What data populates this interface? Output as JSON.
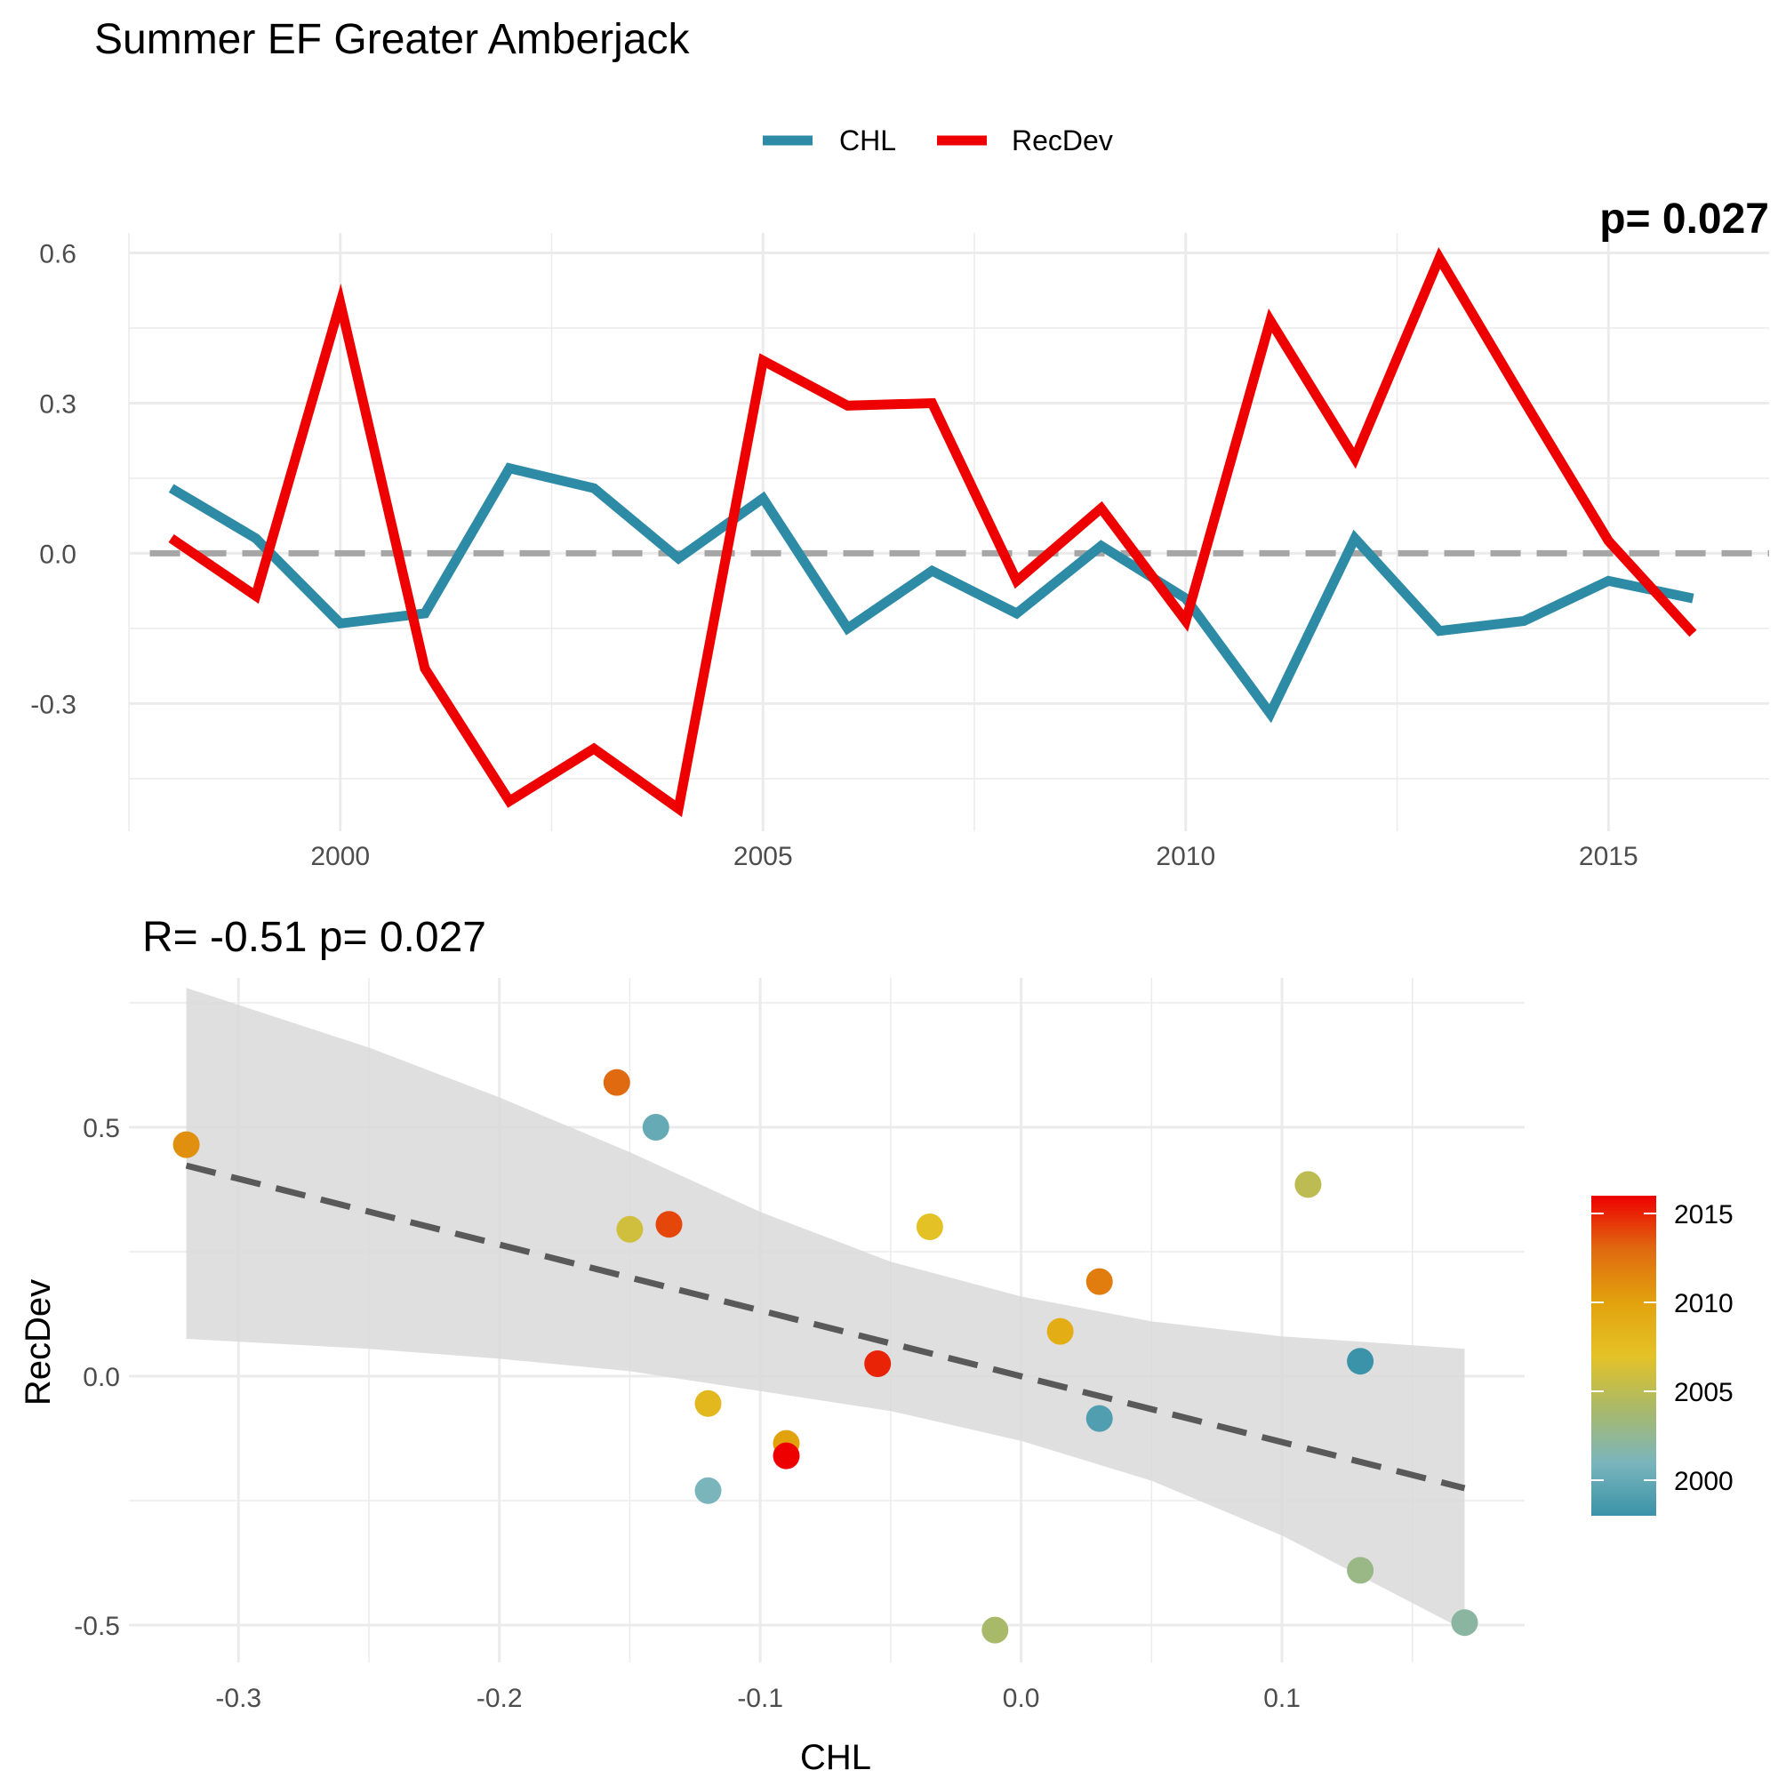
{
  "figure": {
    "title": "Summer EF Greater Amberjack"
  },
  "chart_data": [
    {
      "type": "line",
      "title": "",
      "xlabel": "",
      "ylabel": "",
      "x": [
        1998,
        1999,
        2000,
        2001,
        2002,
        2003,
        2004,
        2005,
        2006,
        2007,
        2008,
        2009,
        2010,
        2011,
        2012,
        2013,
        2014,
        2015,
        2016
      ],
      "series": [
        {
          "name": "CHL",
          "color": "#2E8BA6",
          "values": [
            0.13,
            0.03,
            -0.14,
            -0.12,
            0.17,
            0.13,
            -0.01,
            0.11,
            -0.15,
            -0.035,
            -0.12,
            0.015,
            -0.09,
            -0.32,
            0.03,
            -0.155,
            -0.135,
            -0.055,
            -0.09
          ]
        },
        {
          "name": "RecDev",
          "color": "#EE0000",
          "values": [
            0.03,
            -0.085,
            0.5,
            -0.23,
            -0.495,
            -0.39,
            -0.51,
            0.385,
            0.295,
            0.3,
            -0.055,
            0.09,
            -0.135,
            0.465,
            0.19,
            0.59,
            0.305,
            0.025,
            -0.16
          ]
        }
      ],
      "xticks": [
        2000,
        2005,
        2010,
        2015
      ],
      "yticks": [
        -0.3,
        0.0,
        0.3,
        0.6
      ],
      "ytick_labels": [
        "-0.3",
        "0.0",
        "0.3",
        "0.6"
      ],
      "xlim": [
        1997.5,
        2016.9
      ],
      "ylim": [
        -0.555,
        0.64
      ],
      "reference_line": {
        "y": 0,
        "style": "dashed",
        "color": "#A6A6A6"
      },
      "grid": true,
      "legend": {
        "position": "top",
        "entries": [
          "CHL",
          "RecDev"
        ]
      },
      "annotation_clipped": "p= 0.027"
    },
    {
      "type": "scatter",
      "title": "R= -0.51  p= 0.027",
      "xlabel": "CHL",
      "ylabel": "RecDev",
      "xticks": [
        -0.3,
        -0.2,
        -0.1,
        0.0,
        0.1
      ],
      "xtick_labels": [
        "-0.3",
        "-0.2",
        "-0.1",
        "0.0",
        "0.1"
      ],
      "yticks": [
        -0.5,
        0.0,
        0.5
      ],
      "ytick_labels": [
        "-0.5",
        "0.0",
        "0.5"
      ],
      "xlim": [
        -0.342,
        0.193
      ],
      "ylim": [
        -0.575,
        0.8
      ],
      "grid": true,
      "points": [
        {
          "year": 1998,
          "x": 0.13,
          "y": 0.03
        },
        {
          "year": 1999,
          "x": 0.03,
          "y": -0.085
        },
        {
          "year": 2000,
          "x": -0.14,
          "y": 0.5
        },
        {
          "year": 2001,
          "x": -0.12,
          "y": -0.23
        },
        {
          "year": 2002,
          "x": 0.17,
          "y": -0.495
        },
        {
          "year": 2003,
          "x": 0.13,
          "y": -0.39
        },
        {
          "year": 2004,
          "x": -0.01,
          "y": -0.51
        },
        {
          "year": 2005,
          "x": 0.11,
          "y": 0.385
        },
        {
          "year": 2006,
          "x": -0.15,
          "y": 0.295
        },
        {
          "year": 2007,
          "x": -0.035,
          "y": 0.3
        },
        {
          "year": 2008,
          "x": -0.12,
          "y": -0.055
        },
        {
          "year": 2009,
          "x": 0.015,
          "y": 0.09
        },
        {
          "year": 2010,
          "x": -0.09,
          "y": -0.135
        },
        {
          "year": 2011,
          "x": -0.32,
          "y": 0.465
        },
        {
          "year": 2012,
          "x": 0.03,
          "y": 0.19
        },
        {
          "year": 2013,
          "x": -0.155,
          "y": 0.59
        },
        {
          "year": 2014,
          "x": -0.135,
          "y": 0.305
        },
        {
          "year": 2015,
          "x": -0.055,
          "y": 0.025
        },
        {
          "year": 2016,
          "x": -0.09,
          "y": -0.16
        }
      ],
      "fit": {
        "style": "dashed",
        "color": "#595959",
        "x": [
          -0.32,
          0.17
        ],
        "y": [
          0.423,
          -0.225
        ]
      },
      "confidence_band": {
        "color": "#D9D9D9",
        "x": [
          -0.32,
          -0.25,
          -0.2,
          -0.15,
          -0.1,
          -0.05,
          0.0,
          0.05,
          0.1,
          0.17
        ],
        "upper": [
          0.78,
          0.66,
          0.56,
          0.45,
          0.33,
          0.23,
          0.16,
          0.11,
          0.08,
          0.055
        ],
        "lower": [
          0.075,
          0.055,
          0.035,
          0.01,
          -0.03,
          -0.07,
          -0.13,
          -0.21,
          -0.32,
          -0.51
        ]
      },
      "colorbar": {
        "title": "",
        "ticks": [
          2000,
          2005,
          2010,
          2015
        ],
        "range": [
          1998,
          2016
        ],
        "colors": [
          "#3A93A8",
          "#7BB5BC",
          "#A9B96A",
          "#E4C226",
          "#E2A20E",
          "#E06A10",
          "#EE0000"
        ],
        "position": "right"
      }
    }
  ]
}
